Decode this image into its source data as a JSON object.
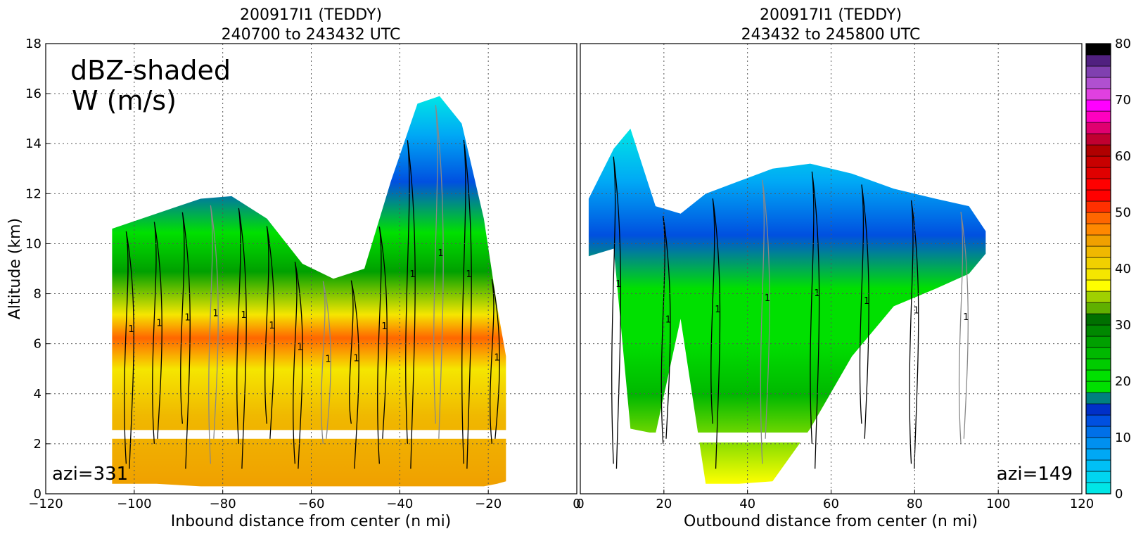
{
  "chart_data": [
    {
      "type": "heatmap",
      "panel": "left",
      "title_line1": "200917I1 (TEDDY)",
      "title_line2": "240700 to 243432 UTC",
      "xlabel": "Inbound distance from center (n mi)",
      "ylabel": "Altitude (km)",
      "xlim": [
        -120,
        0
      ],
      "ylim": [
        0,
        18
      ],
      "xticks": [
        -120,
        -100,
        -80,
        -60,
        -40,
        -20,
        0
      ],
      "yticks": [
        0,
        2,
        4,
        6,
        8,
        10,
        12,
        14,
        16,
        18
      ],
      "annotation_title": "dBZ-shaded",
      "annotation_subtitle": "W (m/s)",
      "azimuth_label": "azi=331",
      "contour_label": "1",
      "grid": true,
      "profile": [
        {
          "x": -105,
          "top": 10.6,
          "bottom": 0.4
        },
        {
          "x": -95,
          "top": 11.2,
          "bottom": 0.4
        },
        {
          "x": -85,
          "top": 11.8,
          "bottom": 0.3
        },
        {
          "x": -78,
          "top": 11.9,
          "bottom": 0.3
        },
        {
          "x": -70,
          "top": 11.0,
          "bottom": 0.3
        },
        {
          "x": -62,
          "top": 9.2,
          "bottom": 0.3
        },
        {
          "x": -55,
          "top": 8.6,
          "bottom": 0.3
        },
        {
          "x": -48,
          "top": 9.0,
          "bottom": 0.3
        },
        {
          "x": -42,
          "top": 12.5,
          "bottom": 0.3
        },
        {
          "x": -36,
          "top": 15.6,
          "bottom": 0.3
        },
        {
          "x": -31,
          "top": 15.9,
          "bottom": 0.3
        },
        {
          "x": -26,
          "top": 14.8,
          "bottom": 0.3
        },
        {
          "x": -21,
          "top": 11.0,
          "bottom": 0.3
        },
        {
          "x": -18,
          "top": 7.5,
          "bottom": 0.4
        },
        {
          "x": -16,
          "top": 5.5,
          "bottom": 0.5
        }
      ]
    },
    {
      "type": "heatmap",
      "panel": "right",
      "title_line1": "200917I1 (TEDDY)",
      "title_line2": "243432 to 245800 UTC",
      "xlabel": "Outbound distance from center (n mi)",
      "xlim": [
        0,
        120
      ],
      "ylim": [
        0,
        18
      ],
      "xticks": [
        0,
        20,
        40,
        60,
        80,
        100,
        120
      ],
      "azimuth_label": "azi=149",
      "grid": true,
      "profile": [
        {
          "x": 2,
          "top": 11.8,
          "bottom": 9.5
        },
        {
          "x": 8,
          "top": 13.8,
          "bottom": 9.8
        },
        {
          "x": 12,
          "top": 14.6,
          "bottom": 2.6
        },
        {
          "x": 18,
          "top": 11.5,
          "bottom": 2.4
        },
        {
          "x": 24,
          "top": 11.2,
          "bottom": 7.0
        },
        {
          "x": 30,
          "top": 12.0,
          "bottom": 0.4
        },
        {
          "x": 38,
          "top": 12.5,
          "bottom": 0.4
        },
        {
          "x": 46,
          "top": 13.0,
          "bottom": 0.5
        },
        {
          "x": 55,
          "top": 13.2,
          "bottom": 2.6
        },
        {
          "x": 65,
          "top": 12.8,
          "bottom": 5.5
        },
        {
          "x": 75,
          "top": 12.2,
          "bottom": 7.5
        },
        {
          "x": 85,
          "top": 11.8,
          "bottom": 8.2
        },
        {
          "x": 93,
          "top": 11.5,
          "bottom": 8.8
        },
        {
          "x": 97,
          "top": 10.5,
          "bottom": 9.6
        }
      ]
    }
  ],
  "colorbar": {
    "min": 0,
    "max": 80,
    "tick_values": [
      0,
      10,
      20,
      30,
      40,
      50,
      60,
      70,
      80
    ],
    "colors": [
      "#00e6e6",
      "#00d5f0",
      "#00c0f5",
      "#00a8f5",
      "#0090f0",
      "#0070e8",
      "#0050e0",
      "#0030c8",
      "#008080",
      "#00e000",
      "#00e000",
      "#00cc00",
      "#00b800",
      "#00a000",
      "#008800",
      "#007000",
      "#60b000",
      "#a0d000",
      "#ffff00",
      "#f5e600",
      "#f0d000",
      "#f0b800",
      "#f0a000",
      "#ff8800",
      "#ff6600",
      "#ff3000",
      "#ff0000",
      "#ff0000",
      "#e00000",
      "#c80000",
      "#b00000",
      "#c00030",
      "#e00070",
      "#ff00c0",
      "#ff00ff",
      "#e040e0",
      "#b050d0",
      "#8040b0",
      "#502080",
      "#000000"
    ]
  },
  "colors": {
    "contour_positive": "#000000",
    "contour_negative": "#888888",
    "grid": "#555555"
  }
}
